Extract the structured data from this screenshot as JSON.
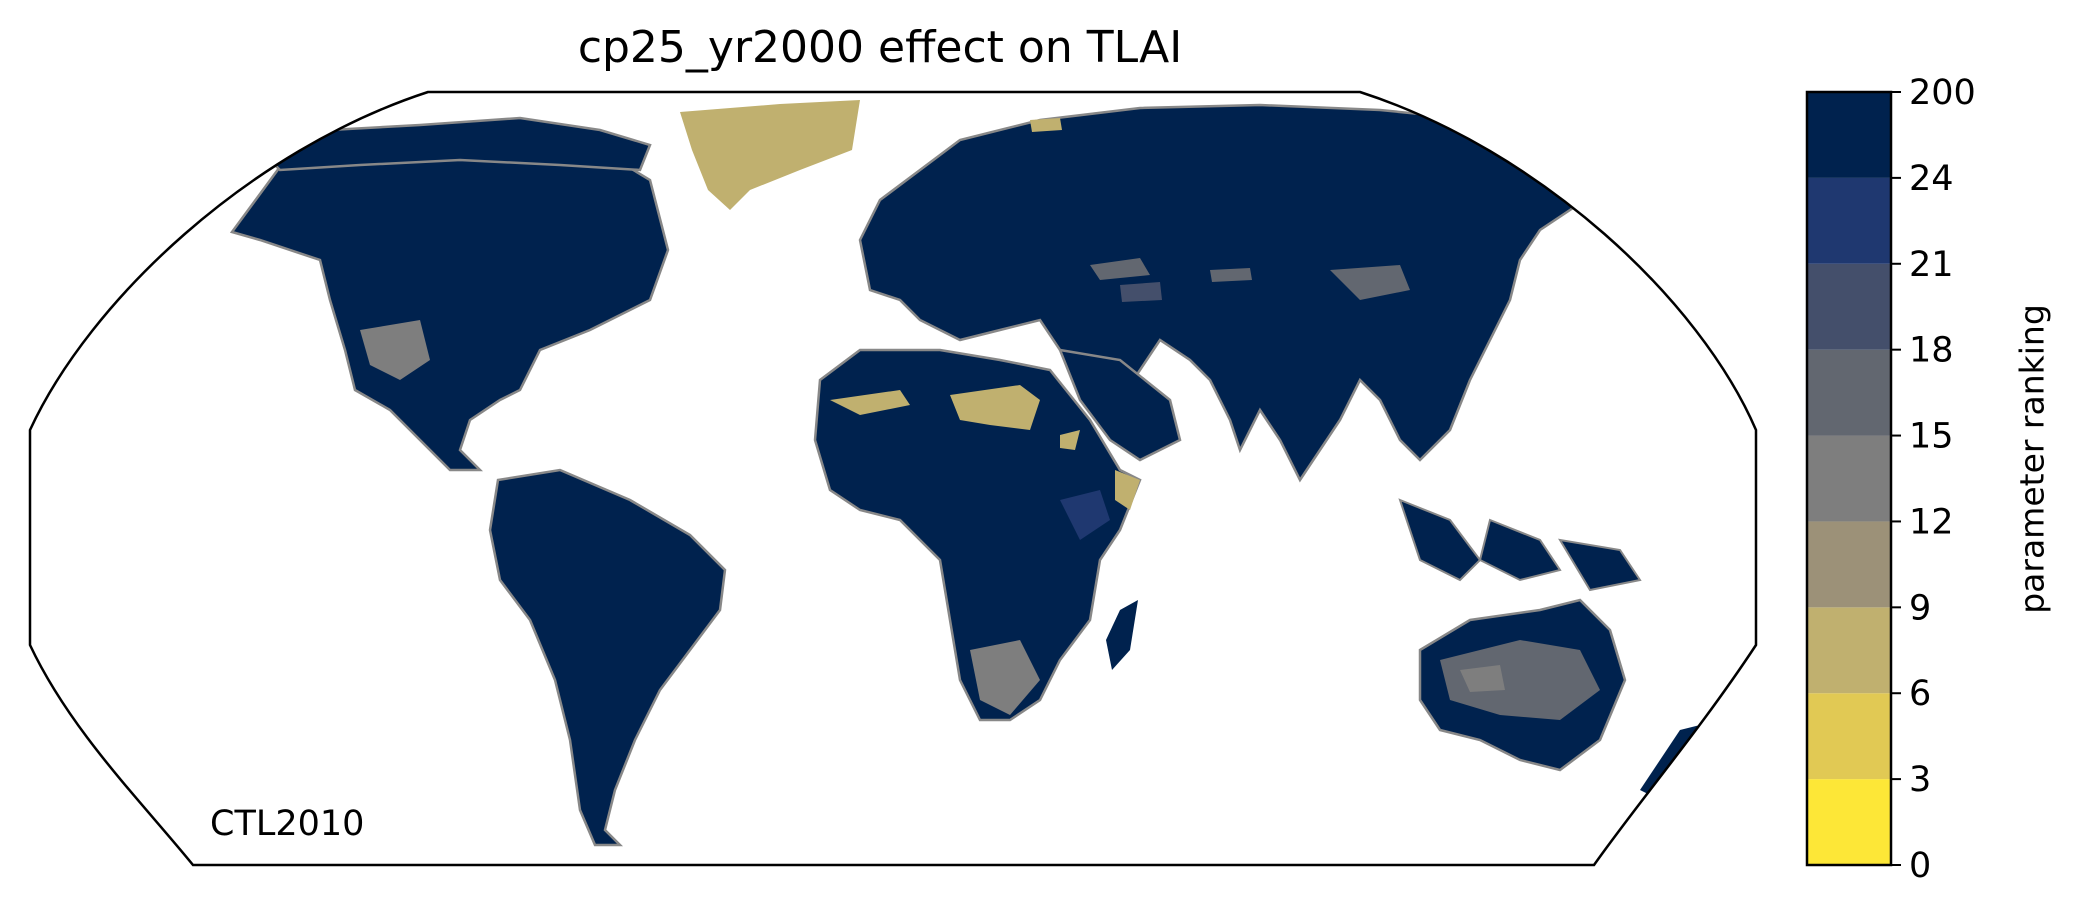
{
  "chart_data": {
    "type": "heatmap",
    "title": "cp25_yr2000 effect on TLAI",
    "annotation": "CTL2010",
    "projection": "Robinson",
    "coastlines": true,
    "colorbar": {
      "label": "parameter ranking",
      "orientation": "vertical",
      "placement": "right",
      "ticks": [
        "0",
        "3",
        "6",
        "9",
        "12",
        "15",
        "18",
        "21",
        "24",
        "200"
      ],
      "bins": [
        {
          "from": 0,
          "to": 3,
          "color": "#fde737"
        },
        {
          "from": 3,
          "to": 6,
          "color": "#e1c954"
        },
        {
          "from": 6,
          "to": 9,
          "color": "#c0b06f"
        },
        {
          "from": 9,
          "to": 12,
          "color": "#9c9178"
        },
        {
          "from": 12,
          "to": 15,
          "color": "#7e7e7e"
        },
        {
          "from": 15,
          "to": 18,
          "color": "#626770"
        },
        {
          "from": 18,
          "to": 21,
          "color": "#444f6b"
        },
        {
          "from": 21,
          "to": 24,
          "color": "#1f3870"
        },
        {
          "from": 24,
          "to": 200,
          "color": "#00224e"
        }
      ]
    },
    "regions": [
      {
        "region": "global land (most grid cells)",
        "bin": "24-200"
      },
      {
        "region": "Greenland",
        "bin": "6-9"
      },
      {
        "region": "Sahara",
        "bin": "6-9"
      },
      {
        "region": "Australia interior",
        "bin": "12-21"
      },
      {
        "region": "southern Africa",
        "bin": "12-18"
      },
      {
        "region": "central Asia / Mongolia",
        "bin": "12-18"
      },
      {
        "region": "western North America",
        "bin": "12-18"
      },
      {
        "region": "Ethiopian highlands",
        "bin": "21-24"
      }
    ]
  }
}
